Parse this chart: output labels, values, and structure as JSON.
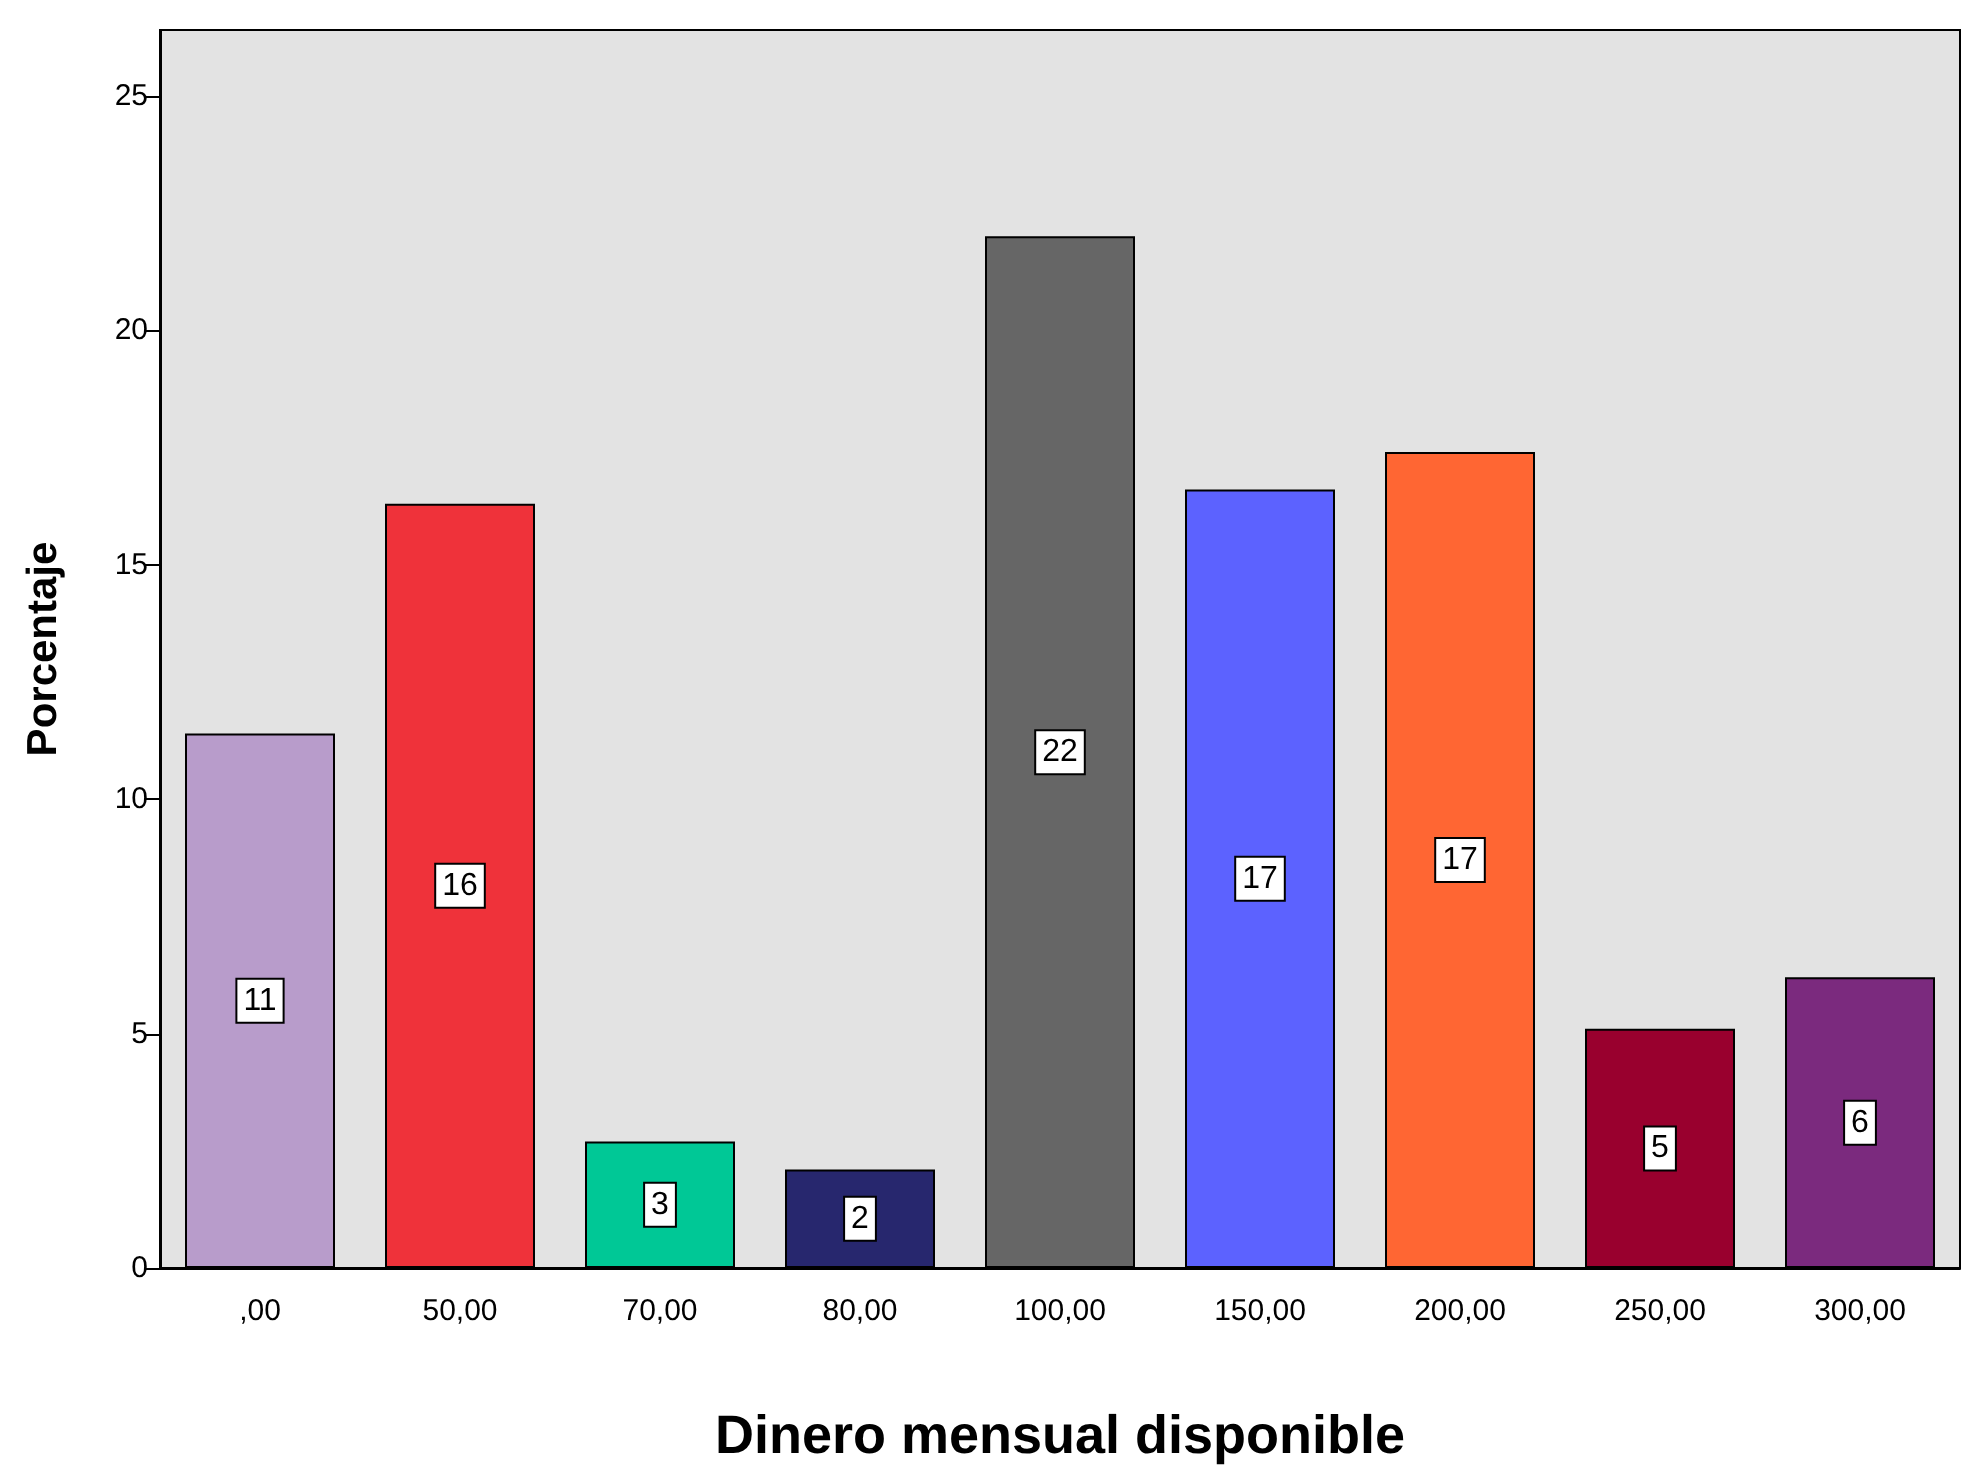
{
  "chart_data": {
    "type": "bar",
    "xlabel": "Dinero mensual disponible",
    "ylabel": "Porcentaje",
    "categories": [
      ",00",
      "50,00",
      "70,00",
      "80,00",
      "100,00",
      "150,00",
      "200,00",
      "250,00",
      "300,00"
    ],
    "values": [
      11.4,
      16.3,
      2.7,
      2.1,
      22.0,
      16.6,
      17.4,
      5.1,
      6.2
    ],
    "value_labels": [
      "11",
      "16",
      "3",
      "2",
      "22",
      "17",
      "17",
      "5",
      "6"
    ],
    "colors": [
      "#b89ccb",
      "#ef323a",
      "#00c896",
      "#27276e",
      "#666666",
      "#5c62ff",
      "#ff6633",
      "#99002e",
      "#7b2a7e"
    ],
    "ylim": [
      0,
      26.4
    ],
    "yticks": [
      0,
      5,
      10,
      15,
      20,
      25
    ],
    "grid": false
  }
}
